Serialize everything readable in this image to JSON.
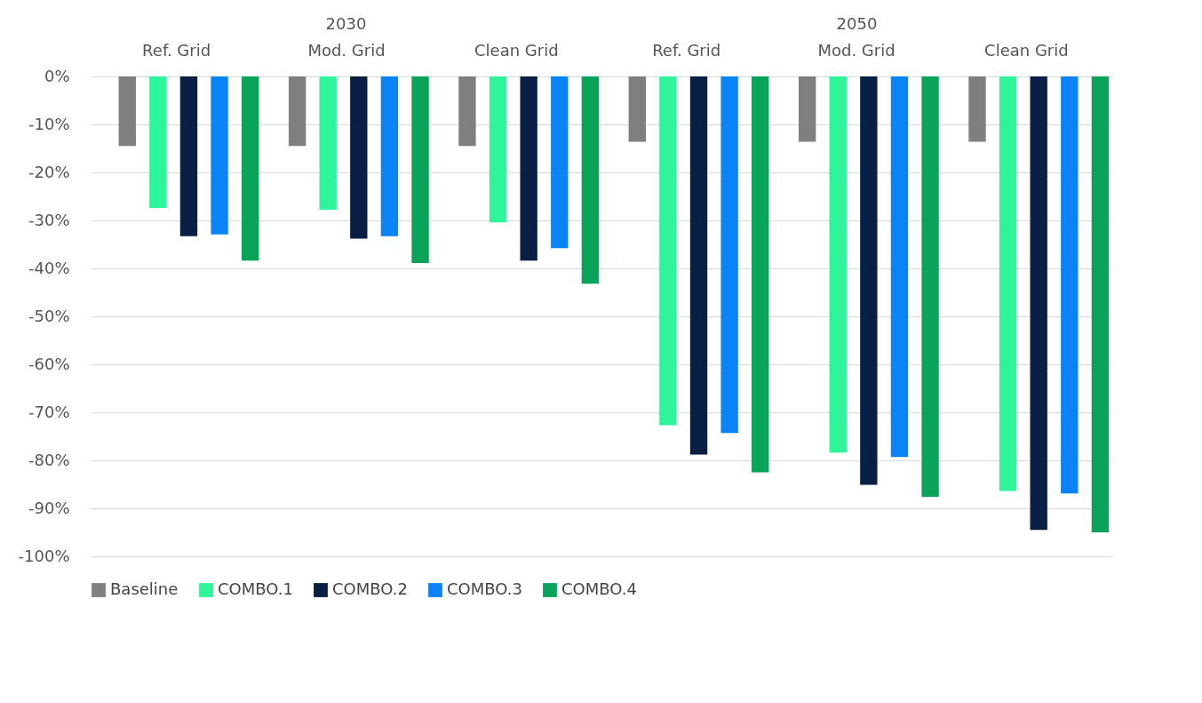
{
  "chart_data": {
    "type": "bar",
    "categories": [
      "Ref. Grid",
      "Mod. Grid",
      "Clean Grid",
      "Ref. Grid",
      "Mod. Grid",
      "Clean Grid"
    ],
    "annotations": [
      "2030",
      "2050"
    ],
    "series": [
      {
        "name": "Baseline",
        "color": "#7f7f82",
        "values": [
          -14.5,
          -14.5,
          -14.5,
          -13.6,
          -13.6,
          -13.6
        ]
      },
      {
        "name": "COMBO.1",
        "color": "#2ef59a",
        "values": [
          -27.4,
          -27.8,
          -30.4,
          -72.7,
          -78.4,
          -86.4
        ]
      },
      {
        "name": "COMBO.2",
        "color": "#0a1f44",
        "values": [
          -33.3,
          -33.8,
          -38.4,
          -78.8,
          -85.1,
          -94.5
        ]
      },
      {
        "name": "COMBO.3",
        "color": "#0a84f5",
        "values": [
          -32.9,
          -33.3,
          -35.8,
          -74.3,
          -79.3,
          -86.9
        ]
      },
      {
        "name": "COMBO.4",
        "color": "#0aa35a",
        "values": [
          -38.4,
          -38.9,
          -43.2,
          -82.5,
          -87.6,
          -95.0
        ]
      }
    ],
    "ylim": [
      -100,
      0
    ],
    "yticks": [
      {
        "value": 0,
        "label": "0%"
      },
      {
        "value": -10,
        "label": "-10%"
      },
      {
        "value": -20,
        "label": "-20%"
      },
      {
        "value": -30,
        "label": "-30%"
      },
      {
        "value": -40,
        "label": "-40%"
      },
      {
        "value": -50,
        "label": "-50%"
      },
      {
        "value": -60,
        "label": "-60%"
      },
      {
        "value": -70,
        "label": "-70%"
      },
      {
        "value": -80,
        "label": "-80%"
      },
      {
        "value": -90,
        "label": "-90%"
      },
      {
        "value": -100,
        "label": "-100%"
      }
    ],
    "grid": "y",
    "legend": "bottom"
  }
}
